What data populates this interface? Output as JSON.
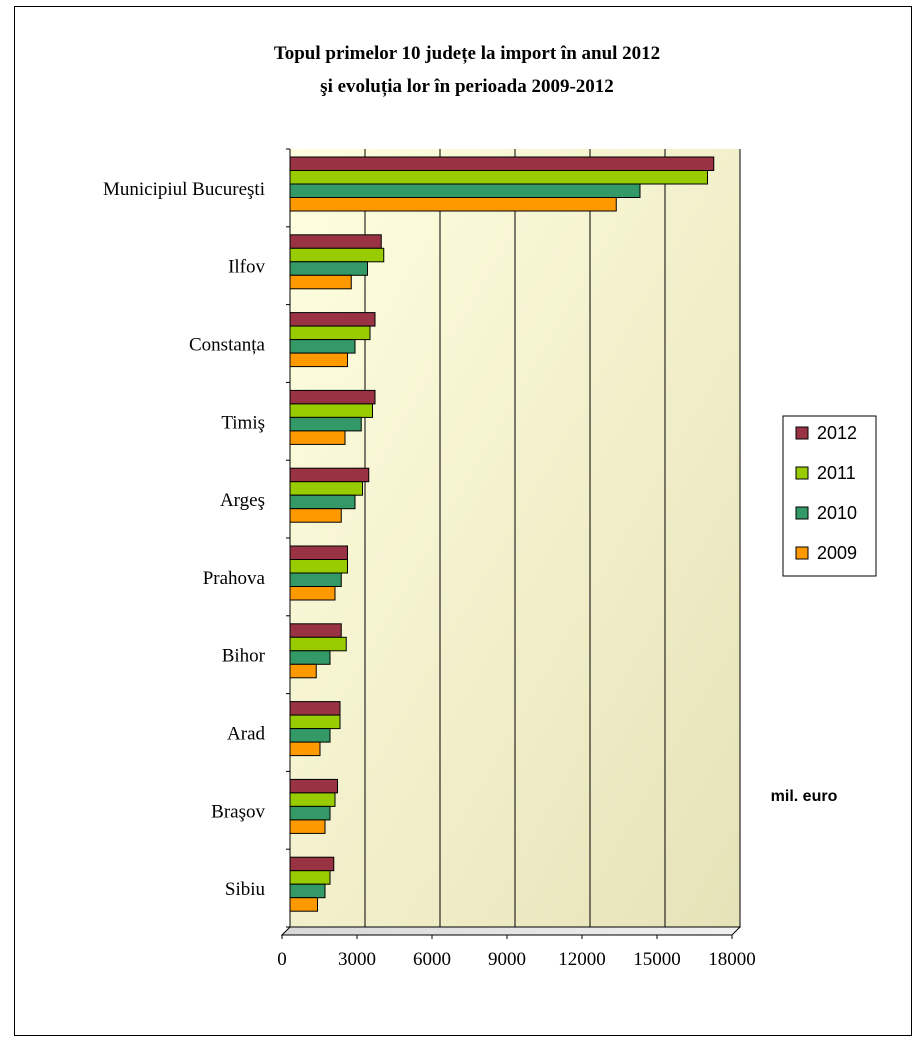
{
  "chart_data": {
    "type": "bar",
    "orientation": "horizontal",
    "title": [
      "Topul primelor 10 județe la import în anul 2012",
      "şi evoluția lor în perioada 2009-2012"
    ],
    "xlabel": "mil. euro",
    "xlim": [
      0,
      18000
    ],
    "xticks": [
      0,
      3000,
      6000,
      9000,
      12000,
      15000,
      18000
    ],
    "gridlines": "vertical",
    "legend_position": "right",
    "categories": [
      "Sibiu",
      "Braşov",
      "Arad",
      "Bihor",
      "Prahova",
      "Argeş",
      "Timiş",
      "Constanța",
      "Ilfov",
      "Municipiul Bucureşti"
    ],
    "series": [
      {
        "name": "2012",
        "color": "#993344",
        "values": [
          1750,
          1900,
          2000,
          2050,
          2300,
          3150,
          3400,
          3400,
          3650,
          16950
        ]
      },
      {
        "name": "2011",
        "color": "#99cc00",
        "values": [
          1600,
          1800,
          2000,
          2250,
          2300,
          2900,
          3300,
          3200,
          3750,
          16700
        ]
      },
      {
        "name": "2010",
        "color": "#339966",
        "values": [
          1400,
          1600,
          1600,
          1600,
          2050,
          2600,
          2850,
          2600,
          3100,
          14000
        ]
      },
      {
        "name": "2009",
        "color": "#ff9900",
        "values": [
          1100,
          1400,
          1200,
          1050,
          1800,
          2050,
          2200,
          2300,
          2450,
          13050
        ]
      }
    ],
    "plot_background": "#f4f3cf"
  }
}
